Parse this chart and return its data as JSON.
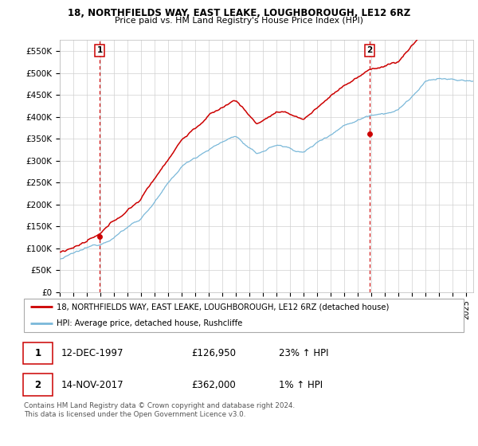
{
  "title_line1": "18, NORTHFIELDS WAY, EAST LEAKE, LOUGHBOROUGH, LE12 6RZ",
  "title_line2": "Price paid vs. HM Land Registry's House Price Index (HPI)",
  "ylim": [
    0,
    575000
  ],
  "yticks": [
    0,
    50000,
    100000,
    150000,
    200000,
    250000,
    300000,
    350000,
    400000,
    450000,
    500000,
    550000
  ],
  "ytick_labels": [
    "£0",
    "£50K",
    "£100K",
    "£150K",
    "£200K",
    "£250K",
    "£300K",
    "£350K",
    "£400K",
    "£450K",
    "£500K",
    "£550K"
  ],
  "hpi_color": "#7ab8d9",
  "price_color": "#cc0000",
  "marker_color": "#cc0000",
  "vline_color": "#cc0000",
  "background_color": "#ffffff",
  "grid_color": "#d0d0d0",
  "legend_label_red": "18, NORTHFIELDS WAY, EAST LEAKE, LOUGHBOROUGH, LE12 6RZ (detached house)",
  "legend_label_blue": "HPI: Average price, detached house, Rushcliffe",
  "annotation1_date": "12-DEC-1997",
  "annotation1_price": "£126,950",
  "annotation1_hpi": "23% ↑ HPI",
  "annotation2_date": "14-NOV-2017",
  "annotation2_price": "£362,000",
  "annotation2_hpi": "1% ↑ HPI",
  "footer": "Contains HM Land Registry data © Crown copyright and database right 2024.\nThis data is licensed under the Open Government Licence v3.0.",
  "sale1_year": 1997.95,
  "sale1_price": 126950,
  "sale2_year": 2017.87,
  "sale2_price": 362000,
  "xmin": 1995.0,
  "xmax": 2025.5
}
